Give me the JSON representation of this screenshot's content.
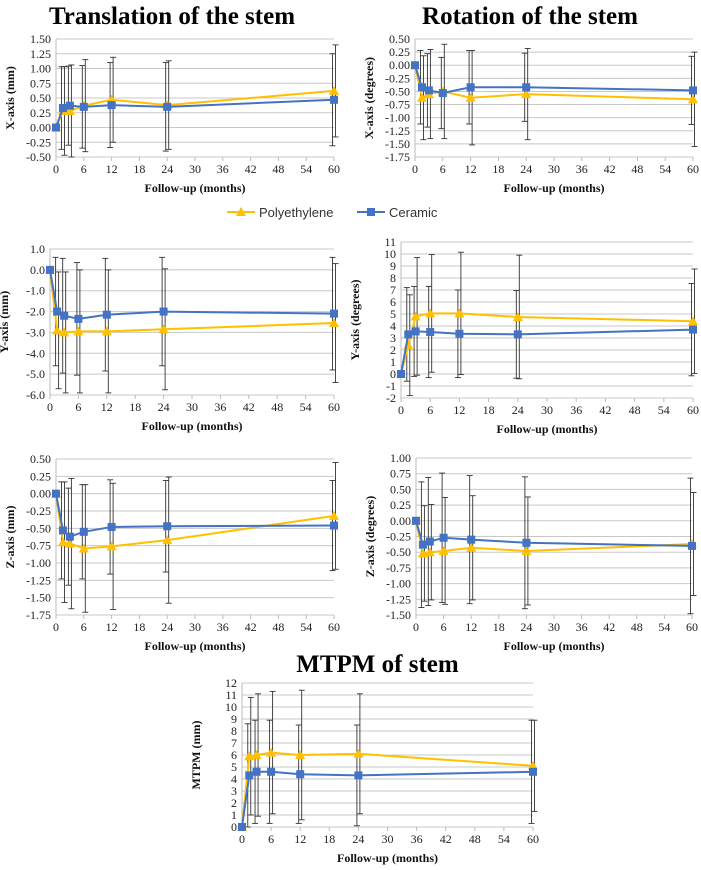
{
  "section_titles": {
    "translation": "Translation of the stem",
    "rotation": "Rotation of the stem"
  },
  "legend": [
    {
      "name": "Polyethylene",
      "color": "#FFC000",
      "marker": "triangle"
    },
    {
      "name": "Ceramic",
      "color": "#4472C4",
      "marker": "square"
    }
  ],
  "chart_data": [
    {
      "id": "x-translation",
      "type": "line",
      "title": "",
      "xlabel": "Follow-up (months)",
      "ylabel": "X-axis (mm)",
      "x": [
        0,
        1.5,
        3,
        6,
        12,
        24,
        60
      ],
      "xticks": [
        0,
        6,
        12,
        18,
        24,
        30,
        36,
        42,
        48,
        54,
        60
      ],
      "ylim": [
        -0.5,
        1.5
      ],
      "ystep": 0.25,
      "ydecimals": 2,
      "grid": true,
      "error_bars": "SD",
      "series": [
        {
          "name": "Polyethylene",
          "values": [
            0,
            0.28,
            0.28,
            0.37,
            0.47,
            0.38,
            0.62
          ],
          "sd": [
            0,
            0.75,
            0.78,
            0.78,
            0.72,
            0.75,
            0.78
          ]
        },
        {
          "name": "Ceramic",
          "values": [
            0,
            0.33,
            0.37,
            0.35,
            0.38,
            0.35,
            0.47
          ],
          "sd": [
            0,
            0.7,
            0.67,
            0.7,
            0.72,
            0.75,
            0.78
          ]
        }
      ]
    },
    {
      "id": "x-rotation",
      "type": "line",
      "title": "",
      "xlabel": "Follow-up (months)",
      "ylabel": "X-axis (degrees)",
      "x": [
        0,
        1.5,
        3,
        6,
        12,
        24,
        60
      ],
      "xticks": [
        0,
        6,
        12,
        18,
        24,
        30,
        36,
        42,
        48,
        54,
        60
      ],
      "ylim": [
        -1.75,
        0.5
      ],
      "ystep": 0.25,
      "ydecimals": 2,
      "grid": true,
      "error_bars": "SD",
      "series": [
        {
          "name": "Polyethylene",
          "values": [
            0,
            -0.62,
            -0.55,
            -0.5,
            -0.62,
            -0.55,
            -0.65
          ],
          "sd": [
            0,
            0.8,
            0.85,
            0.9,
            0.9,
            0.87,
            0.9
          ]
        },
        {
          "name": "Ceramic",
          "values": [
            0,
            -0.42,
            -0.48,
            -0.53,
            -0.42,
            -0.42,
            -0.48
          ],
          "sd": [
            0,
            0.7,
            0.7,
            0.68,
            0.7,
            0.65,
            0.65
          ]
        }
      ]
    },
    {
      "id": "y-translation",
      "type": "line",
      "title": "",
      "xlabel": "Follow-up (months)",
      "ylabel": "Y-axis (mm)",
      "x": [
        0,
        1.5,
        3,
        6,
        12,
        24,
        60
      ],
      "xticks": [
        0,
        6,
        12,
        18,
        24,
        30,
        36,
        42,
        48,
        54,
        60
      ],
      "ylim": [
        -6,
        1
      ],
      "ystep": 1,
      "ydecimals": 1,
      "grid": true,
      "error_bars": "SD",
      "series": [
        {
          "name": "Polyethylene",
          "values": [
            0,
            -2.9,
            -3.0,
            -2.95,
            -2.95,
            -2.85,
            -2.55
          ],
          "sd": [
            0,
            2.8,
            2.9,
            2.95,
            2.95,
            2.9,
            2.85
          ]
        },
        {
          "name": "Ceramic",
          "values": [
            0,
            -2.0,
            -2.2,
            -2.35,
            -2.15,
            -2.0,
            -2.1
          ],
          "sd": [
            0,
            2.6,
            2.75,
            2.7,
            2.7,
            2.6,
            2.7
          ]
        }
      ]
    },
    {
      "id": "y-rotation",
      "type": "line",
      "title": "",
      "xlabel": "Follow-up (months)",
      "ylabel": "Y-axis (degrees)",
      "x": [
        0,
        1.5,
        3,
        6,
        12,
        24,
        60
      ],
      "xticks": [
        0,
        6,
        12,
        18,
        24,
        30,
        36,
        42,
        48,
        54,
        60
      ],
      "ylim": [
        -2,
        11
      ],
      "ystep": 1,
      "ydecimals": 0,
      "grid": true,
      "error_bars": "SD",
      "series": [
        {
          "name": "Polyethylene",
          "values": [
            0,
            2.4,
            4.8,
            5.05,
            5.05,
            4.75,
            4.4
          ],
          "sd": [
            0,
            4.2,
            4.9,
            4.9,
            5.1,
            5.15,
            4.35
          ]
        },
        {
          "name": "Ceramic",
          "values": [
            0,
            3.3,
            3.55,
            3.5,
            3.35,
            3.3,
            3.7
          ],
          "sd": [
            0,
            3.9,
            3.75,
            3.8,
            3.65,
            3.65,
            3.85
          ]
        }
      ]
    },
    {
      "id": "z-translation",
      "type": "line",
      "title": "",
      "xlabel": "Follow-up (months)",
      "ylabel": "Z-axis (mm)",
      "x": [
        0,
        1.5,
        3,
        6,
        12,
        24,
        60
      ],
      "xticks": [
        0,
        6,
        12,
        18,
        24,
        30,
        36,
        42,
        48,
        54,
        60
      ],
      "ylim": [
        -1.75,
        0.5
      ],
      "ystep": 0.25,
      "ydecimals": 2,
      "grid": true,
      "error_bars": "SD",
      "series": [
        {
          "name": "Polyethylene",
          "values": [
            0,
            -0.7,
            -0.72,
            -0.79,
            -0.76,
            -0.67,
            -0.32
          ],
          "sd": [
            0,
            0.87,
            0.94,
            0.92,
            0.91,
            0.91,
            0.77
          ]
        },
        {
          "name": "Ceramic",
          "values": [
            0,
            -0.53,
            -0.62,
            -0.55,
            -0.48,
            -0.47,
            -0.46
          ],
          "sd": [
            0,
            0.7,
            0.7,
            0.68,
            0.68,
            0.66,
            0.65
          ]
        }
      ]
    },
    {
      "id": "z-rotation",
      "type": "line",
      "title": "",
      "xlabel": "Follow-up (months)",
      "ylabel": "Z-axis (degrees)",
      "x": [
        0,
        1.5,
        3,
        6,
        12,
        24,
        60
      ],
      "xticks": [
        0,
        6,
        12,
        18,
        24,
        30,
        36,
        42,
        48,
        54,
        60
      ],
      "ylim": [
        -1.5,
        1.0
      ],
      "ystep": 0.25,
      "ydecimals": 2,
      "grid": true,
      "error_bars": "SD",
      "series": [
        {
          "name": "Polyethylene",
          "values": [
            0,
            -0.52,
            -0.5,
            -0.48,
            -0.43,
            -0.48,
            -0.37
          ],
          "sd": [
            0,
            0.76,
            0.76,
            0.85,
            0.83,
            0.86,
            0.82
          ]
        },
        {
          "name": "Ceramic",
          "values": [
            0,
            -0.38,
            -0.33,
            -0.27,
            -0.3,
            -0.35,
            -0.4
          ],
          "sd": [
            0,
            1.0,
            1.02,
            1.03,
            1.02,
            1.05,
            1.08
          ]
        }
      ]
    },
    {
      "id": "mtpm",
      "type": "line",
      "title": "MTPM of stem",
      "xlabel": "Follow-up (months)",
      "ylabel": "MTPM (mm)",
      "x": [
        0,
        1.5,
        3,
        6,
        12,
        24,
        60
      ],
      "xticks": [
        0,
        6,
        12,
        18,
        24,
        30,
        36,
        42,
        48,
        54,
        60
      ],
      "ylim": [
        0,
        12
      ],
      "ystep": 1,
      "ydecimals": 0,
      "grid": true,
      "error_bars": "SD",
      "series": [
        {
          "name": "Polyethylene",
          "values": [
            0,
            5.9,
            6.0,
            6.2,
            6.0,
            6.1,
            5.1
          ],
          "sd": [
            0,
            4.9,
            5.1,
            5.1,
            5.4,
            5.0,
            3.8
          ]
        },
        {
          "name": "Ceramic",
          "values": [
            0,
            4.3,
            4.6,
            4.6,
            4.4,
            4.3,
            4.6
          ],
          "sd": [
            0,
            4.3,
            4.3,
            4.3,
            4.1,
            4.2,
            4.3
          ]
        }
      ]
    }
  ]
}
